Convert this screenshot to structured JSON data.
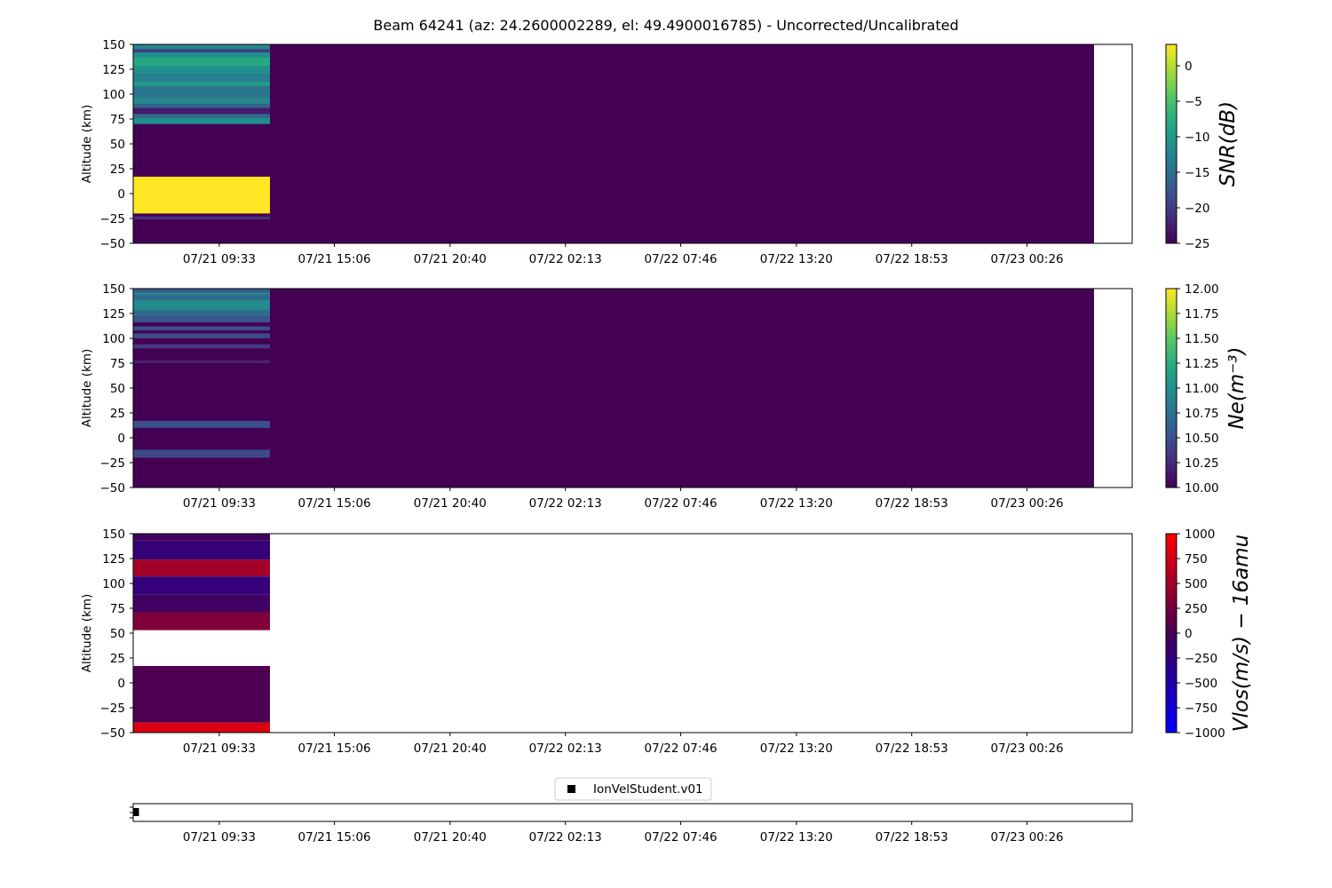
{
  "figure": {
    "title": "Beam 64241 (az: 24.2600002289, el: 49.4900016785) - Uncorrected/Uncalibrated"
  },
  "colors": {
    "viridis_low": "#440154",
    "viridis_mid": "#21918c",
    "viridis_high": "#fde725",
    "bwr_low": "#0000ff",
    "bwr_high": "#ff0000",
    "frame": "#000000"
  },
  "chart_data": [
    {
      "type": "heatmap",
      "panel": "snr",
      "xlabel": "",
      "ylabel": "Altitude (km)",
      "ylim": [
        -50,
        150
      ],
      "yticks": [
        "150",
        "125",
        "100",
        "75",
        "50",
        "25",
        "0",
        "−25",
        "−50"
      ],
      "xticks": [
        "07/21 09:33",
        "07/21 15:06",
        "07/21 20:40",
        "07/22 02:13",
        "07/22 07:46",
        "07/22 13:20",
        "07/22 18:53",
        "07/23 00:26"
      ],
      "colormap": "viridis",
      "colorbar": {
        "label": "SNR(dB)",
        "range": [
          -25,
          3
        ],
        "ticks": [
          "0",
          "−5",
          "−10",
          "−15",
          "−20",
          "−25"
        ]
      },
      "background_value": -25,
      "data_extent": "07/21 ~05:00 to 07/23 ~05:00",
      "early_block": "07/21 ~05:00 to 07/21 ~11:40",
      "bands": [
        {
          "alt_from": 145,
          "alt_to": 150,
          "value": -12
        },
        {
          "alt_from": 142,
          "alt_to": 145,
          "value": -20
        },
        {
          "alt_from": 137,
          "alt_to": 142,
          "value": -11
        },
        {
          "alt_from": 128,
          "alt_to": 137,
          "value": -8
        },
        {
          "alt_from": 120,
          "alt_to": 128,
          "value": -11
        },
        {
          "alt_from": 113,
          "alt_to": 120,
          "value": -13
        },
        {
          "alt_from": 108,
          "alt_to": 113,
          "value": -10
        },
        {
          "alt_from": 97,
          "alt_to": 108,
          "value": -14
        },
        {
          "alt_from": 90,
          "alt_to": 97,
          "value": -12
        },
        {
          "alt_from": 86,
          "alt_to": 90,
          "value": -16
        },
        {
          "alt_from": 80,
          "alt_to": 86,
          "value": -23
        },
        {
          "alt_from": 76,
          "alt_to": 80,
          "value": -15
        },
        {
          "alt_from": 70,
          "alt_to": 76,
          "value": -11
        },
        {
          "alt_from": -20,
          "alt_to": 17,
          "value": 3
        },
        {
          "alt_from": -26,
          "alt_to": -23,
          "value": -21
        }
      ]
    },
    {
      "type": "heatmap",
      "panel": "ne",
      "xlabel": "",
      "ylabel": "Altitude (km)",
      "ylim": [
        -50,
        150
      ],
      "yticks": [
        "150",
        "125",
        "100",
        "75",
        "50",
        "25",
        "0",
        "−25",
        "−50"
      ],
      "xticks": [
        "07/21 09:33",
        "07/21 15:06",
        "07/21 20:40",
        "07/22 02:13",
        "07/22 07:46",
        "07/22 13:20",
        "07/22 18:53",
        "07/23 00:26"
      ],
      "colormap": "viridis",
      "colorbar": {
        "label": "Ne(m⁻³)",
        "range": [
          10,
          12
        ],
        "ticks": [
          "12.00",
          "11.75",
          "11.50",
          "11.25",
          "11.00",
          "10.75",
          "10.50",
          "10.25",
          "10.00"
        ]
      },
      "background_value": 10,
      "data_extent": "07/21 ~05:00 to 07/23 ~05:00",
      "early_block": "07/21 ~05:00 to 07/21 ~11:40",
      "bands": [
        {
          "alt_from": 146,
          "alt_to": 150,
          "value": 10.6
        },
        {
          "alt_from": 143,
          "alt_to": 146,
          "value": 10.9
        },
        {
          "alt_from": 139,
          "alt_to": 143,
          "value": 10.7
        },
        {
          "alt_from": 128,
          "alt_to": 139,
          "value": 10.95
        },
        {
          "alt_from": 122,
          "alt_to": 128,
          "value": 10.7
        },
        {
          "alt_from": 116,
          "alt_to": 122,
          "value": 10.55
        },
        {
          "alt_from": 108,
          "alt_to": 112,
          "value": 10.5
        },
        {
          "alt_from": 100,
          "alt_to": 105,
          "value": 10.45
        },
        {
          "alt_from": 90,
          "alt_to": 94,
          "value": 10.35
        },
        {
          "alt_from": 75,
          "alt_to": 78,
          "value": 10.2
        },
        {
          "alt_from": 10,
          "alt_to": 17,
          "value": 10.5
        },
        {
          "alt_from": -20,
          "alt_to": -12,
          "value": 10.45
        }
      ]
    },
    {
      "type": "heatmap",
      "panel": "vlos",
      "xlabel": "",
      "ylabel": "Altitude (km)",
      "ylim": [
        -50,
        150
      ],
      "yticks": [
        "150",
        "125",
        "100",
        "75",
        "50",
        "25",
        "0",
        "−25",
        "−50"
      ],
      "xticks": [
        "07/21 09:33",
        "07/21 15:06",
        "07/21 20:40",
        "07/22 02:13",
        "07/22 07:46",
        "07/22 13:20",
        "07/22 18:53",
        "07/23 00:26"
      ],
      "colormap": "bwr",
      "colorbar": {
        "label": "Vlos(m/s) − 16amu",
        "range": [
          -1000,
          1000
        ],
        "ticks": [
          "1000",
          "750",
          "500",
          "250",
          "0",
          "−250",
          "−500",
          "−750",
          "−1000"
        ]
      },
      "background_value": null,
      "early_block": "07/21 ~05:00 to 07/21 ~11:40",
      "bands": [
        {
          "alt_from": 143,
          "alt_to": 150,
          "value": -50
        },
        {
          "alt_from": 124,
          "alt_to": 143,
          "value": -200
        },
        {
          "alt_from": 107,
          "alt_to": 124,
          "value": 500
        },
        {
          "alt_from": 89,
          "alt_to": 107,
          "value": -220
        },
        {
          "alt_from": 71,
          "alt_to": 89,
          "value": -80
        },
        {
          "alt_from": 53,
          "alt_to": 71,
          "value": 320
        },
        {
          "alt_from": -40,
          "alt_to": 17,
          "value": 50
        },
        {
          "alt_from": -50,
          "alt_to": -40,
          "value": 800
        }
      ]
    },
    {
      "type": "scatter",
      "panel": "status",
      "xticks": [
        "07/21 09:33",
        "07/21 15:06",
        "07/21 20:40",
        "07/22 02:13",
        "07/22 07:46",
        "07/22 13:20",
        "07/22 18:53",
        "07/23 00:26"
      ],
      "series": [
        {
          "name": "IonVelStudent.v01",
          "marker": "square",
          "points": [
            "07/21 ~05:00"
          ]
        }
      ]
    }
  ]
}
